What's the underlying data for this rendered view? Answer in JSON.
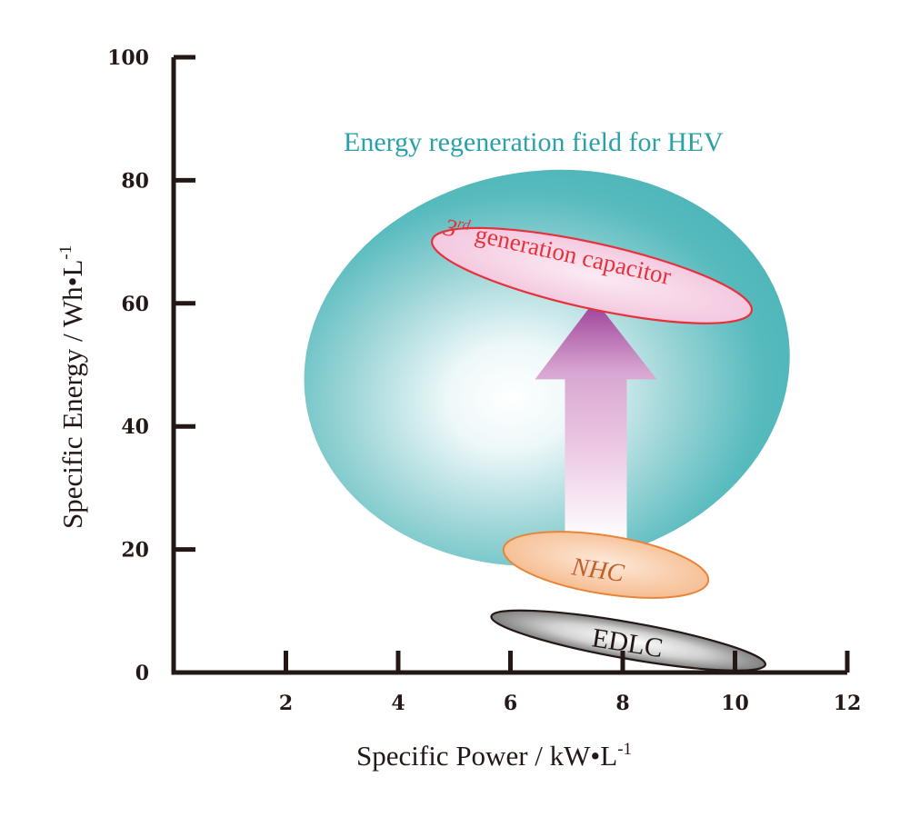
{
  "chart_data": {
    "type": "scatter",
    "title": "",
    "xlabel": "Specific Power / kW•L",
    "xlabel_sup": "-1",
    "ylabel": "Specific Energy / Wh•L",
    "ylabel_sup": "-1",
    "xlim": [
      0,
      12
    ],
    "ylim": [
      0,
      100
    ],
    "xticks": [
      2,
      4,
      6,
      8,
      10,
      12
    ],
    "yticks": [
      0,
      20,
      40,
      60,
      80,
      100
    ],
    "xtick_labels": [
      "2",
      "4",
      "6",
      "8",
      "10",
      "12"
    ],
    "ytick_labels": [
      "0",
      "20",
      "40",
      "60",
      "80",
      "100"
    ],
    "grid": false,
    "regions": [
      {
        "name": "Energy regeneration field for HEV",
        "kind": "field",
        "center": [
          6.65,
          49.5
        ],
        "x_range": [
          2.3,
          11.0
        ],
        "y_range": [
          17.7,
          81.5
        ],
        "color": "#4fb8bc"
      },
      {
        "name": "3rd generation capacitor",
        "kind": "device",
        "center": [
          7.45,
          64.5
        ],
        "x_range": [
          4.6,
          10.4
        ],
        "y_range": [
          57,
          74
        ],
        "color": "#e8303a"
      },
      {
        "name": "NHC",
        "kind": "device",
        "center": [
          7.7,
          17.5
        ],
        "x_range": [
          5.8,
          9.5
        ],
        "y_range": [
          12,
          23
        ],
        "color": "#e8853a"
      },
      {
        "name": "EDLC",
        "kind": "device",
        "center": [
          8.1,
          5.2
        ],
        "x_range": [
          5.7,
          10.6
        ],
        "y_range": [
          0.5,
          10
        ],
        "color": "#333333"
      }
    ],
    "annotations": [
      {
        "text": "Energy regeneration field for HEV",
        "type": "title-label",
        "color": "#2aa0a8"
      },
      {
        "text": "3rd generation capacitor",
        "ordinal": "3",
        "ordinal_suffix": "rd",
        "rest": "generation capacitor",
        "color": "#e8303a"
      },
      {
        "text": "NHC",
        "color": "#c0602a"
      },
      {
        "text": "EDLC",
        "color": "#231815"
      }
    ],
    "arrow": {
      "from": [
        7.7,
        22.5
      ],
      "to": [
        7.7,
        60.5
      ],
      "meaning": "improvement from NHC toward 3rd generation capacitor",
      "color": "#9a3d96"
    }
  }
}
